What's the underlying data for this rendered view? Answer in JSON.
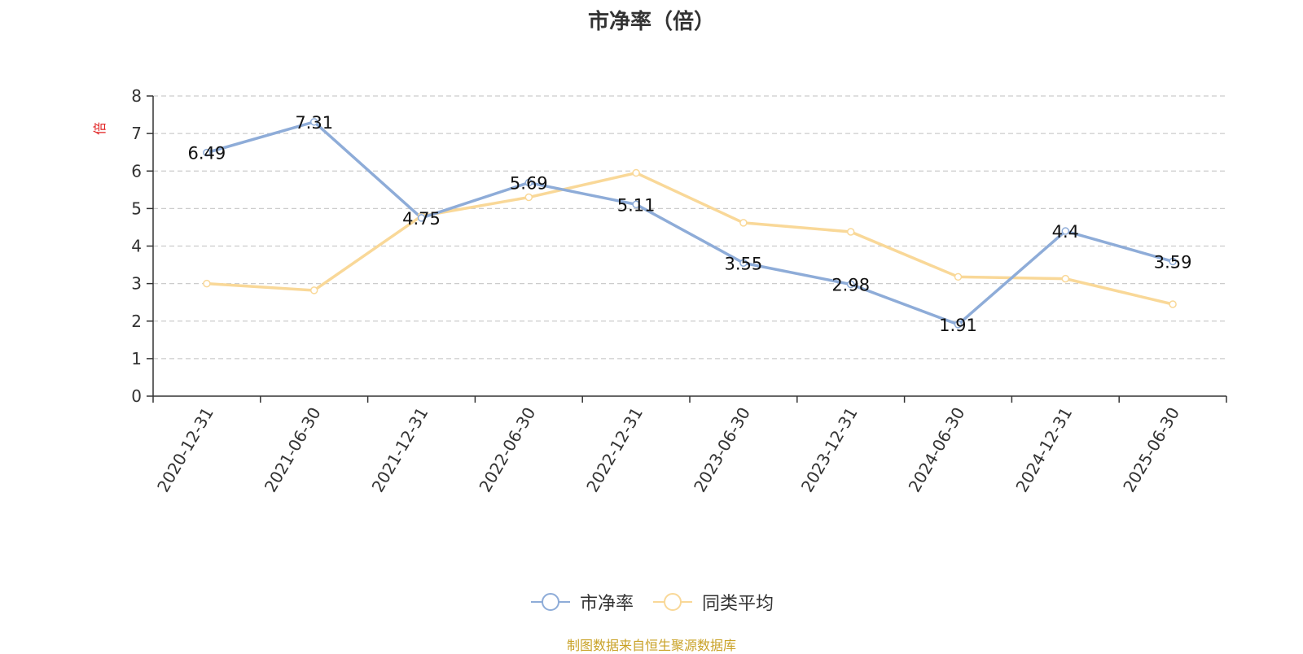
{
  "chart_data": {
    "type": "line",
    "title": "市净率（倍）",
    "ylabel": "倍",
    "ylim": [
      0,
      8
    ],
    "yticks": [
      0,
      1,
      2,
      3,
      4,
      5,
      6,
      7,
      8
    ],
    "grid": true,
    "legend_position": "bottom-center",
    "categories": [
      "2020-12-31",
      "2021-06-30",
      "2021-12-31",
      "2022-06-30",
      "2022-12-31",
      "2023-06-30",
      "2023-12-31",
      "2024-06-30",
      "2024-12-31",
      "2025-06-30"
    ],
    "series": [
      {
        "name": "市净率",
        "color": "#8eacd8",
        "values": [
          6.49,
          7.31,
          4.75,
          5.69,
          5.11,
          3.55,
          2.98,
          1.91,
          4.4,
          3.59
        ],
        "labels": [
          "6.49",
          "7.31",
          "4.75",
          "5.69",
          "5.11",
          "3.55",
          "2.98",
          "1.91",
          "4.4",
          "3.59"
        ],
        "show_labels": true
      },
      {
        "name": "同类平均",
        "color": "#f9d898",
        "values": [
          3.0,
          2.82,
          4.8,
          5.3,
          5.95,
          4.62,
          4.38,
          3.18,
          3.13,
          2.45
        ],
        "show_labels": false
      }
    ]
  },
  "source_note": "制图数据来自恒生聚源数据库"
}
